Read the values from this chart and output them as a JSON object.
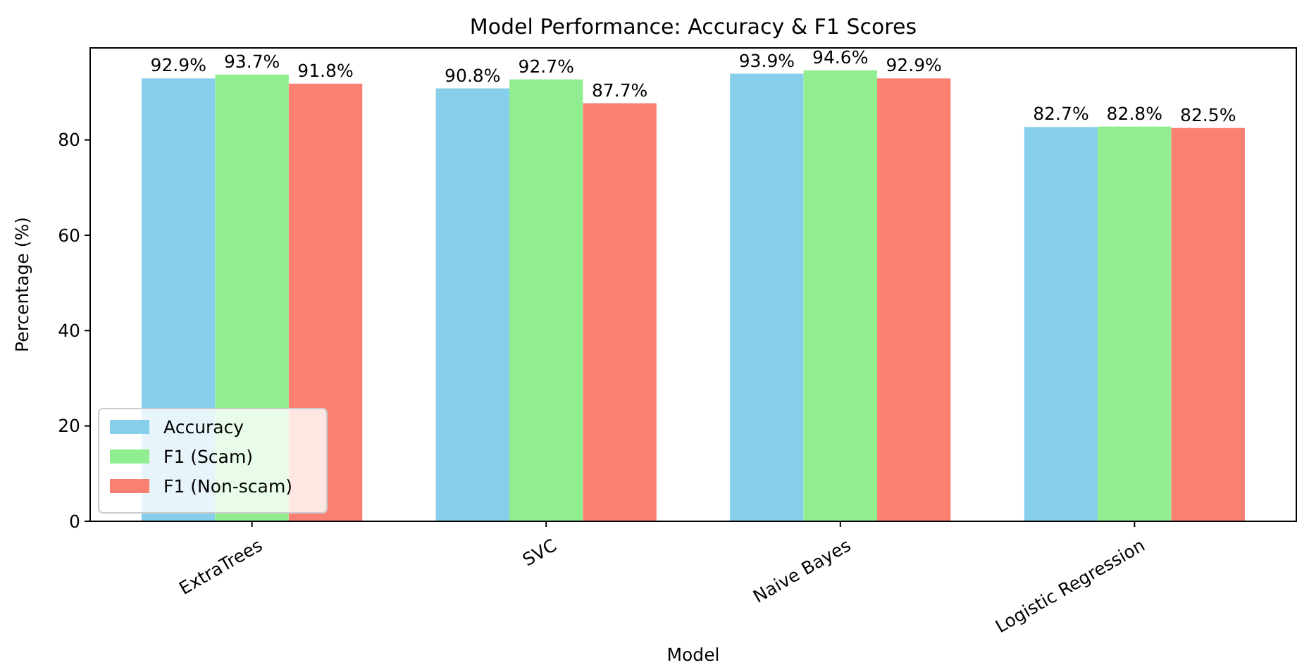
{
  "chart_data": {
    "type": "bar",
    "title": "Model Performance: Accuracy & F1 Scores",
    "xlabel": "Model",
    "ylabel": "Percentage (%)",
    "categories": [
      "ExtraTrees",
      "SVC",
      "Naive Bayes",
      "Logistic Regression"
    ],
    "series": [
      {
        "name": "Accuracy",
        "color": "#87ceeb",
        "values": [
          92.9,
          90.8,
          93.9,
          82.7
        ]
      },
      {
        "name": "F1 (Scam)",
        "color": "#90ee90",
        "values": [
          93.7,
          92.7,
          94.6,
          82.8
        ]
      },
      {
        "name": "F1 (Non-scam)",
        "color": "#fa8072",
        "values": [
          91.8,
          87.7,
          92.9,
          82.5
        ]
      }
    ],
    "value_labels": [
      [
        "92.9%",
        "90.8%",
        "93.9%",
        "82.7%"
      ],
      [
        "93.7%",
        "92.7%",
        "94.6%",
        "82.8%"
      ],
      [
        "91.8%",
        "87.7%",
        "92.9%",
        "82.5%"
      ]
    ],
    "ylim": [
      0,
      99.3
    ],
    "yticks": [
      0,
      20,
      40,
      60,
      80
    ],
    "legend": "bottom left",
    "grid": false
  }
}
